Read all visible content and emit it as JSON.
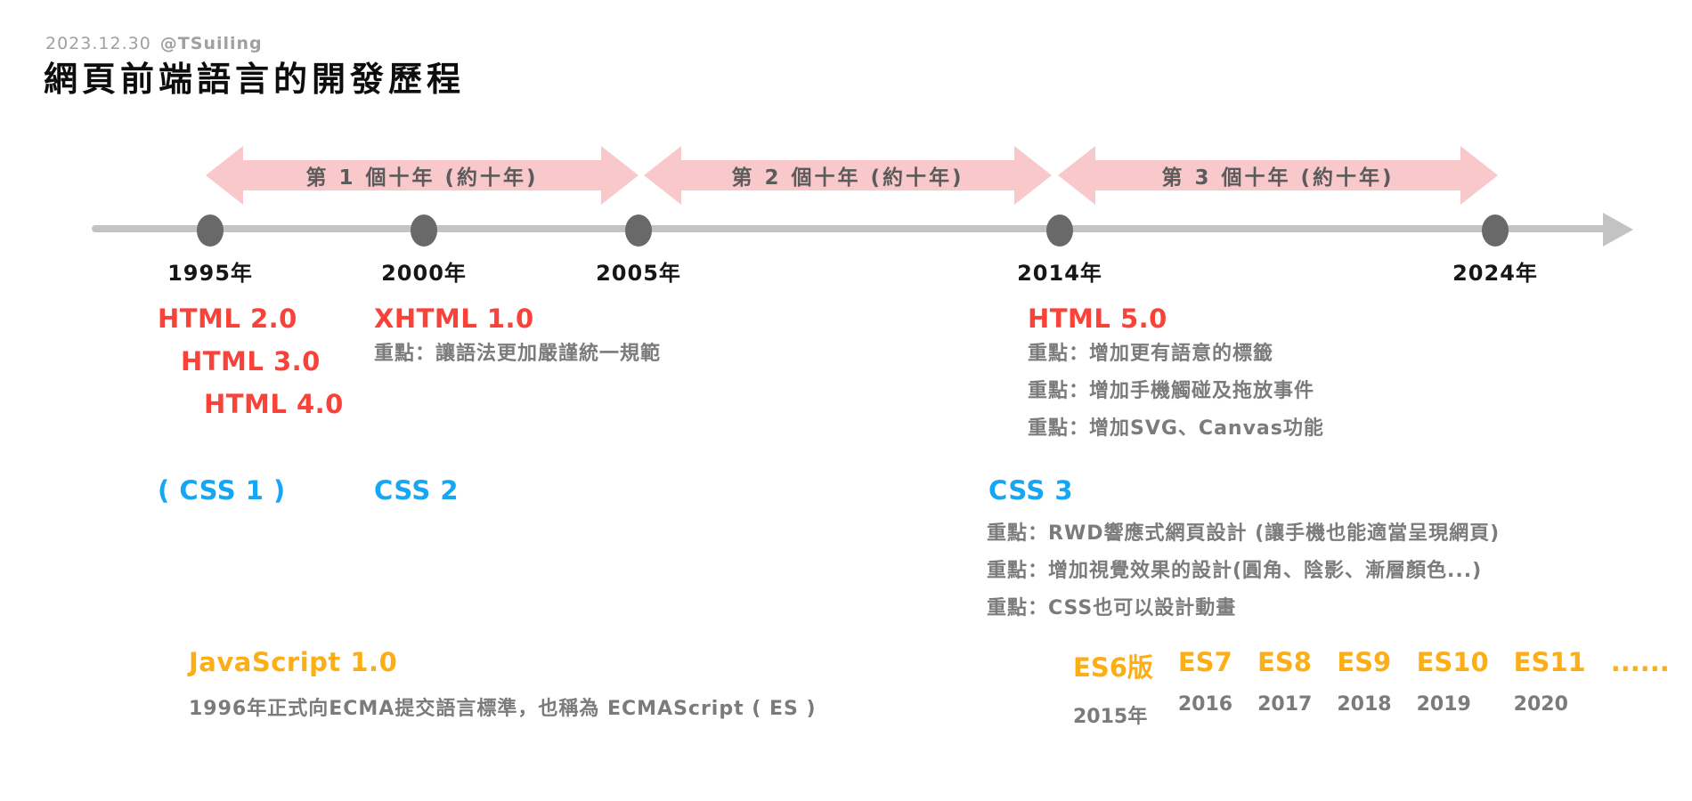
{
  "meta": {
    "date": "2023.12.30",
    "handle": "@TSuiling"
  },
  "title": "網頁前端語言的開發歷程",
  "timeline": {
    "decades": [
      {
        "label": "第 1 個十年 (約十年)"
      },
      {
        "label": "第 2 個十年 (約十年)"
      },
      {
        "label": "第 3 個十年 (約十年)"
      }
    ],
    "years": [
      "1995年",
      "2000年",
      "2005年",
      "2014年",
      "2024年"
    ]
  },
  "html_track": {
    "era1_versions": [
      "HTML 2.0",
      "HTML 3.0",
      "HTML 4.0"
    ],
    "era2": {
      "title": "XHTML 1.0",
      "note": "重點：讓語法更加嚴謹統一規範"
    },
    "era3": {
      "title": "HTML 5.0",
      "notes": [
        "重點：增加更有語意的標籤",
        "重點：增加手機觸碰及拖放事件",
        "重點：增加SVG、Canvas功能"
      ]
    }
  },
  "css_track": {
    "era1": "( CSS 1 )",
    "era2": "CSS 2",
    "era3": {
      "title": "CSS 3",
      "notes": [
        "重點：RWD響應式網頁設計 (讓手機也能適當呈現網頁)",
        "重點：增加視覺效果的設計(圓角、陰影、漸層顏色...)",
        "重點：CSS也可以設計動畫"
      ]
    }
  },
  "js_track": {
    "title": "JavaScript 1.0",
    "note": "1996年正式向ECMA提交語言標準，也稱為 ECMAScript ( ES )",
    "es_versions": [
      {
        "label": "ES6版",
        "year": "2015年"
      },
      {
        "label": "ES7",
        "year": "2016"
      },
      {
        "label": "ES8",
        "year": "2017"
      },
      {
        "label": "ES9",
        "year": "2018"
      },
      {
        "label": "ES10",
        "year": "2019"
      },
      {
        "label": "ES11",
        "year": "2020"
      },
      {
        "label": "......",
        "year": ""
      }
    ]
  },
  "colors": {
    "red": "#f9423a",
    "blue": "#16a6f3",
    "orange": "#fcae17",
    "pink": "#f9c8cb",
    "line-gray": "#c3c3c3",
    "dot-gray": "#696969",
    "note-gray": "#7b7b7b"
  }
}
